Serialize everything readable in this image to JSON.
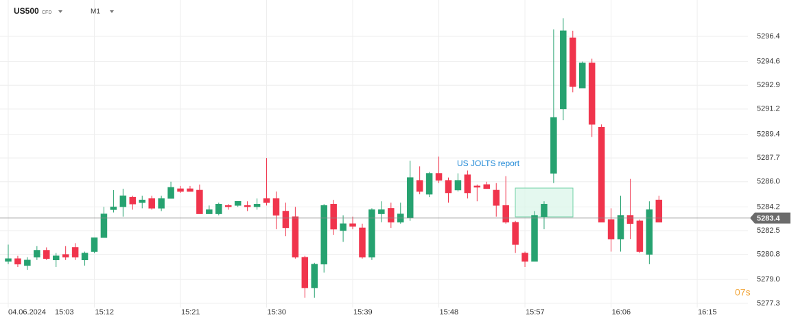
{
  "chart_data": {
    "type": "candlestick",
    "symbol": "US500",
    "instrument_type": "CFD",
    "timeframe": "M1",
    "date": "04.06.2024",
    "up_color": "#26a270",
    "down_color": "#f0344c",
    "grid": true,
    "x": [
      903,
      904,
      905,
      906,
      907,
      908,
      909,
      910,
      911,
      912,
      913,
      914,
      915,
      916,
      917,
      918,
      919,
      920,
      921,
      922,
      923,
      924,
      925,
      926,
      927,
      928,
      929,
      930,
      931,
      932,
      933,
      934,
      935,
      936,
      937,
      938,
      939,
      940,
      941,
      942,
      943,
      944,
      945,
      946,
      947,
      948,
      949,
      950,
      951,
      952,
      953,
      954,
      955,
      956,
      957,
      958,
      959,
      960,
      961,
      962,
      963,
      964,
      965,
      966,
      967,
      968,
      969,
      970,
      971
    ],
    "open": [
      5280.3,
      5280.5,
      5280.0,
      5280.6,
      5281.1,
      5280.4,
      5280.8,
      5281.3,
      5280.4,
      5281.0,
      5282.0,
      5284.0,
      5284.2,
      5284.9,
      5284.5,
      5284.8,
      5284.1,
      5284.8,
      5285.5,
      5285.5,
      5285.4,
      5283.7,
      5283.7,
      5284.3,
      5284.3,
      5284.3,
      5284.2,
      5284.8,
      5284.8,
      5283.9,
      5283.5,
      5280.6,
      5278.4,
      5280.1,
      5284.4,
      5282.5,
      5283.0,
      5282.7,
      5280.6,
      5283.7,
      5284.1,
      5283.1,
      5283.4,
      5286.1,
      5285.1,
      5286.6,
      5286.1,
      5285.4,
      5286.5,
      5285.7,
      5285.8,
      5285.4,
      5284.3,
      5283.1,
      5280.9,
      5280.3,
      5283.5,
      5286.6,
      5291.2,
      5296.3,
      5292.7,
      5294.5,
      5289.9,
      5283.3,
      5281.9,
      5283.6,
      5283.2,
      5280.8,
      5284.7
    ],
    "high": [
      5281.5,
      5280.7,
      5280.6,
      5281.4,
      5281.3,
      5280.9,
      5281.4,
      5281.6,
      5281.0,
      5282.0,
      5284.2,
      5285.4,
      5285.5,
      5285.0,
      5285.0,
      5285.0,
      5285.0,
      5286.0,
      5285.7,
      5285.7,
      5285.8,
      5284.3,
      5284.5,
      5284.4,
      5284.6,
      5284.6,
      5284.8,
      5287.7,
      5285.3,
      5284.5,
      5284.2,
      5280.7,
      5280.2,
      5284.4,
      5284.7,
      5283.6,
      5283.5,
      5283.0,
      5284.1,
      5284.6,
      5284.5,
      5284.5,
      5287.5,
      5287.1,
      5286.7,
      5287.8,
      5286.3,
      5286.6,
      5286.8,
      5285.8,
      5286.0,
      5285.9,
      5286.4,
      5283.2,
      5281.0,
      5283.9,
      5284.6,
      5296.9,
      5297.7,
      5296.8,
      5294.6,
      5294.8,
      5290.1,
      5284.1,
      5285.0,
      5286.2,
      5283.3,
      5284.6,
      5285.0
    ],
    "low": [
      5280.1,
      5279.9,
      5279.7,
      5280.4,
      5280.4,
      5279.9,
      5280.4,
      5280.4,
      5280.0,
      5280.9,
      5282.0,
      5283.8,
      5283.5,
      5284.0,
      5284.1,
      5284.0,
      5283.9,
      5284.8,
      5285.2,
      5285.3,
      5283.7,
      5283.7,
      5283.6,
      5284.0,
      5284.2,
      5283.9,
      5284.0,
      5284.3,
      5282.6,
      5282.1,
      5280.5,
      5277.7,
      5277.7,
      5279.5,
      5282.2,
      5281.7,
      5282.6,
      5280.5,
      5280.4,
      5283.1,
      5282.7,
      5283.0,
      5283.2,
      5285.1,
      5284.9,
      5285.9,
      5284.5,
      5285.3,
      5284.8,
      5284.6,
      5285.5,
      5283.5,
      5283.0,
      5280.9,
      5279.9,
      5280.3,
      5282.6,
      5285.9,
      5290.4,
      5292.4,
      5292.7,
      5289.2,
      5283.1,
      5281.0,
      5281.0,
      5281.9,
      5280.9,
      5280.1,
      5283.1
    ],
    "close": [
      5280.5,
      5280.1,
      5280.4,
      5281.1,
      5280.5,
      5280.7,
      5280.6,
      5280.6,
      5280.9,
      5282.0,
      5283.7,
      5284.2,
      5285.0,
      5284.4,
      5284.7,
      5284.1,
      5284.8,
      5285.6,
      5285.3,
      5285.3,
      5283.7,
      5284.0,
      5284.4,
      5284.2,
      5284.6,
      5284.2,
      5284.4,
      5284.5,
      5283.6,
      5282.7,
      5280.6,
      5278.4,
      5280.1,
      5284.3,
      5282.6,
      5283.0,
      5282.8,
      5280.6,
      5284.0,
      5284.0,
      5283.1,
      5283.7,
      5286.3,
      5285.3,
      5286.6,
      5286.1,
      5285.2,
      5286.1,
      5285.2,
      5285.6,
      5285.5,
      5284.3,
      5283.1,
      5281.5,
      5280.3,
      5283.6,
      5284.4,
      5290.6,
      5296.8,
      5292.8,
      5294.5,
      5290.1,
      5283.1,
      5281.9,
      5283.6,
      5283.0,
      5281.0,
      5284.0,
      5283.1
    ],
    "xlim": [
      902.14,
      980.3
    ],
    "xticks": [
      {
        "value": 903,
        "label": "15:03"
      },
      {
        "value": 912,
        "label": "15:12"
      },
      {
        "value": 921,
        "label": "15:21"
      },
      {
        "value": 930,
        "label": "15:30"
      },
      {
        "value": 939,
        "label": "15:39"
      },
      {
        "value": 948,
        "label": "15:48"
      },
      {
        "value": 957,
        "label": "15:57"
      },
      {
        "value": 966,
        "label": "16:06"
      },
      {
        "value": 975,
        "label": "16:15"
      }
    ],
    "ylim": [
      5277.0,
      5299.0
    ],
    "yticks": [
      5296.4,
      5294.6,
      5292.9,
      5291.2,
      5289.4,
      5287.7,
      {
        "value": 5286,
        "label": "5286.0"
      },
      5284.2,
      5282.5,
      5280.8,
      {
        "value": 5279,
        "label": "5279.0"
      },
      5277.3
    ],
    "last_price": 5283.4,
    "annotation": "US JOLTS report",
    "countdown": "07s"
  }
}
